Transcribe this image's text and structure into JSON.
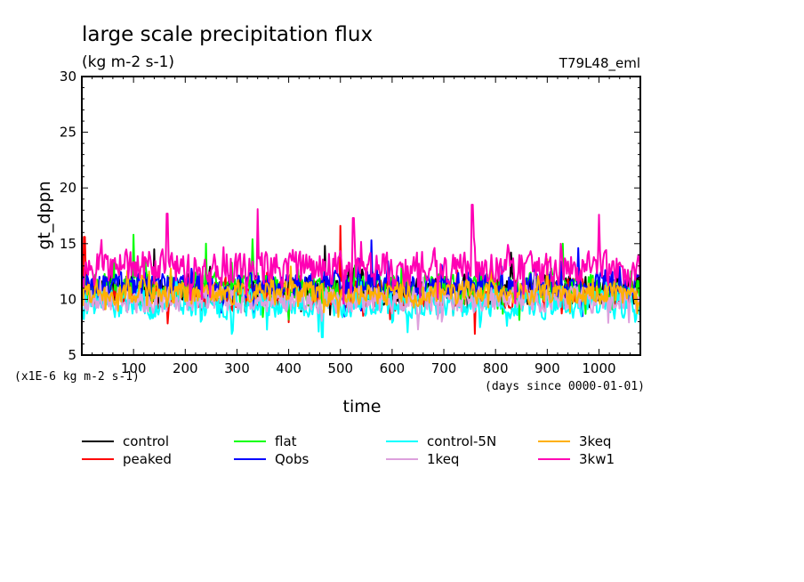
{
  "chart_data": {
    "type": "line",
    "title": "large scale precipitation flux",
    "subtitle": "(kg m-2 s-1)",
    "experiment": "T79L48_eml",
    "xlabel": "time",
    "xunits": "(days since 0000-01-01)",
    "ylabel": "gt_dppn",
    "yscale_note": "(x1E-6 kg m-2 s-1)",
    "xlim": [
      0,
      1080
    ],
    "ylim": [
      5,
      30
    ],
    "xticks": [
      100,
      200,
      300,
      400,
      500,
      600,
      700,
      800,
      900,
      1000
    ],
    "yticks": [
      5,
      10,
      15,
      20,
      25,
      30
    ],
    "legend_position": "bottom",
    "series": [
      {
        "name": "control",
        "color": "#000000",
        "mean": 10.8,
        "spread": 1.3,
        "peaks": [
          [
            140,
            14.5
          ],
          [
            470,
            14.8
          ],
          [
            830,
            14.2
          ]
        ]
      },
      {
        "name": "peaked",
        "color": "#ff0000",
        "mean": 10.5,
        "spread": 1.4,
        "peaks": [
          [
            5,
            15.6
          ],
          [
            500,
            16.6
          ],
          [
            760,
            6.9
          ]
        ]
      },
      {
        "name": "flat",
        "color": "#00ff00",
        "mean": 11.0,
        "spread": 1.4,
        "peaks": [
          [
            100,
            15.8
          ],
          [
            240,
            15.0
          ],
          [
            330,
            15.4
          ],
          [
            930,
            15.0
          ]
        ]
      },
      {
        "name": "Qobs",
        "color": "#0000ff",
        "mean": 11.2,
        "spread": 1.3,
        "peaks": [
          [
            560,
            15.3
          ],
          [
            960,
            14.6
          ]
        ]
      },
      {
        "name": "control-5N",
        "color": "#00ffff",
        "mean": 9.6,
        "spread": 1.3,
        "peaks": [
          [
            290,
            6.9
          ],
          [
            465,
            6.6
          ],
          [
            770,
            7.5
          ]
        ]
      },
      {
        "name": "1keq",
        "color": "#dda0dd",
        "mean": 10.0,
        "spread": 1.2,
        "peaks": [
          [
            650,
            7.3
          ],
          [
            1040,
            9.2
          ]
        ]
      },
      {
        "name": "3keq",
        "color": "#ffb000",
        "mean": 10.6,
        "spread": 1.1,
        "peaks": [
          [
            900,
            13.6
          ]
        ]
      },
      {
        "name": "3kw1",
        "color": "#ff00b4",
        "mean": 12.8,
        "spread": 1.6,
        "peaks": [
          [
            165,
            17.7
          ],
          [
            340,
            18.1
          ],
          [
            525,
            17.3
          ],
          [
            755,
            18.5
          ],
          [
            1000,
            17.6
          ]
        ]
      }
    ]
  }
}
